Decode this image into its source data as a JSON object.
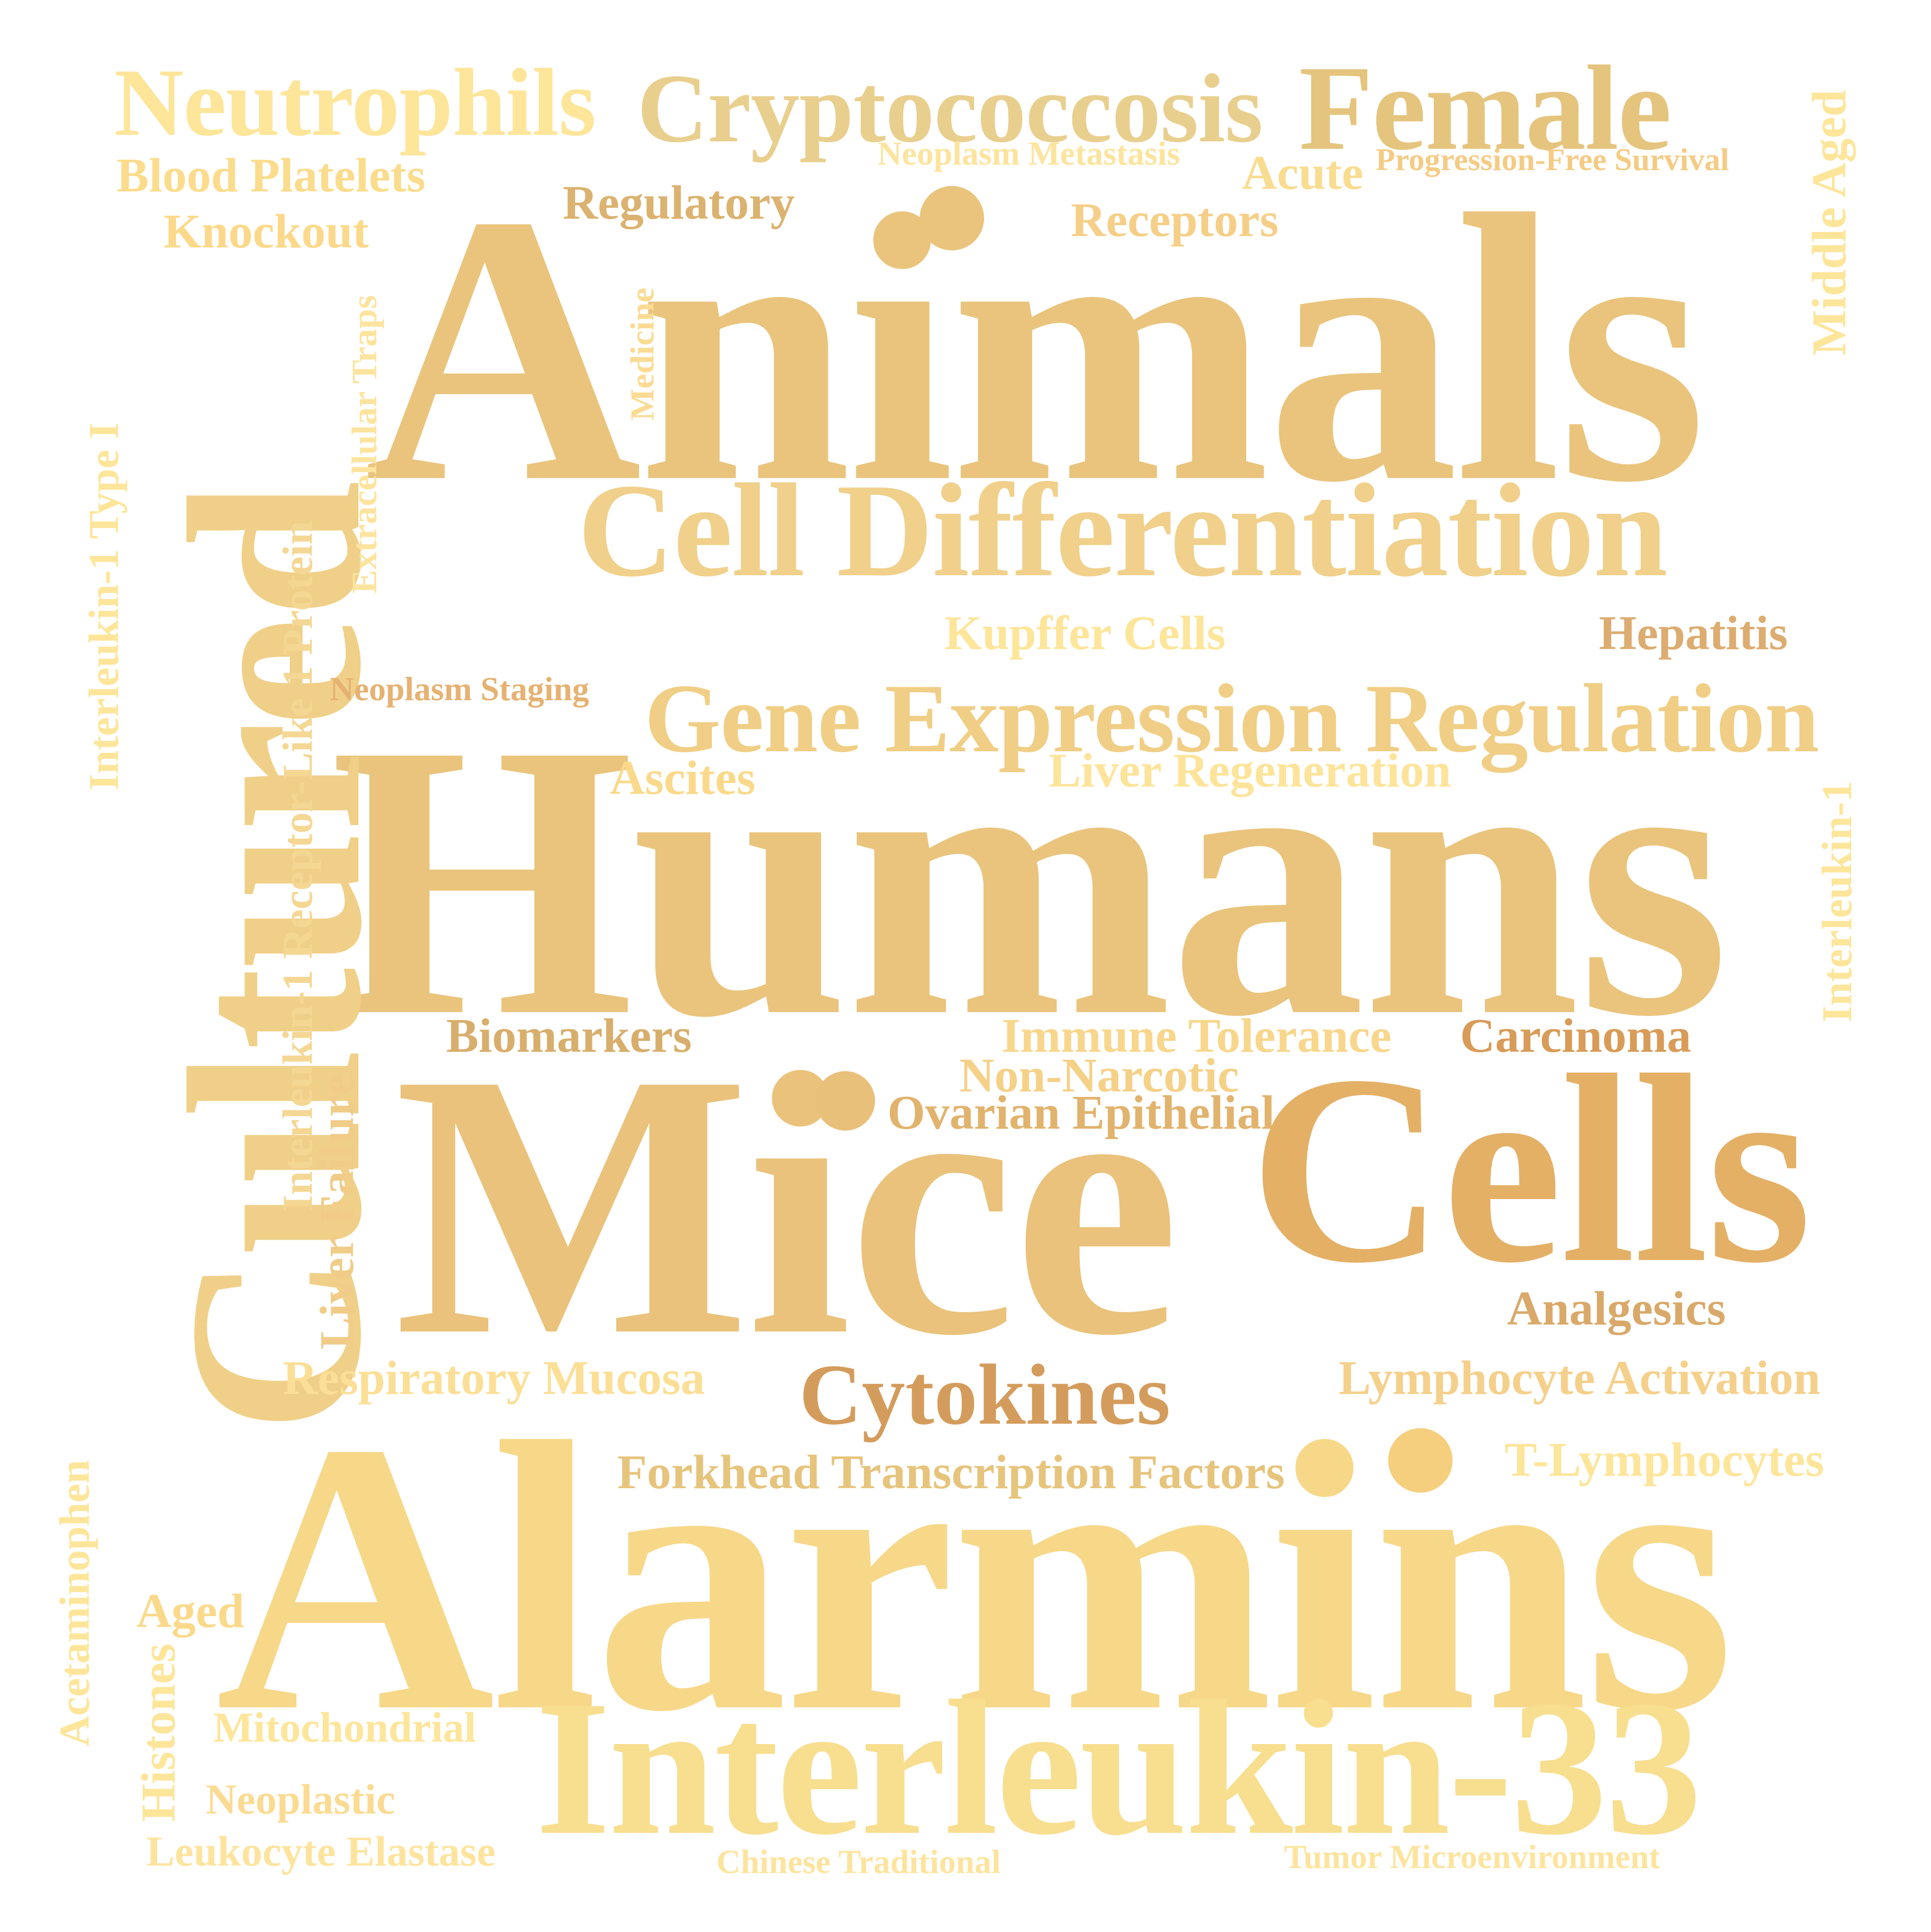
{
  "word_cloud": {
    "words": [
      {
        "text": "Animals",
        "color": "#eac47d"
      },
      {
        "text": "Humans",
        "color": "#eac47d"
      },
      {
        "text": "Mice",
        "color": "#eac27b"
      },
      {
        "text": "Alarmins",
        "color": "#f7d889"
      },
      {
        "text": "Cultured",
        "color": "#f0d088"
      },
      {
        "text": "Cells",
        "color": "#e4b066"
      },
      {
        "text": "Interleukin-33",
        "color": "#f8de8f"
      },
      {
        "text": "Cell Differentiation",
        "color": "#f0d08b"
      },
      {
        "text": "Gene Expression Regulation",
        "color": "#f0ce85"
      },
      {
        "text": "Cryptococcosis",
        "color": "#e9cf8e"
      },
      {
        "text": "Female",
        "color": "#e5c47d"
      },
      {
        "text": "Neutrophils",
        "color": "#fde59a"
      },
      {
        "text": "Cytokines",
        "color": "#d49c5c"
      },
      {
        "text": "Blood Platelets",
        "color": "#fbdc8c"
      },
      {
        "text": "Knockout",
        "color": "#fcd98a"
      },
      {
        "text": "Regulatory",
        "color": "#dbb26f"
      },
      {
        "text": "Receptors",
        "color": "#f5cf88"
      },
      {
        "text": "Acute",
        "color": "#f8dc90"
      },
      {
        "text": "Neoplasm Metastasis",
        "color": "#fde49e"
      },
      {
        "text": "Progression-Free Survival",
        "color": "#f5cb84"
      },
      {
        "text": "Middle Aged",
        "color": "#fde59a"
      },
      {
        "text": "Medicine",
        "color": "#fbdb93"
      },
      {
        "text": "Extracellular Traps",
        "color": "#fde49e"
      },
      {
        "text": "Interleukin-1 Receptor-Like 1 Protein",
        "color": "#f5d794"
      },
      {
        "text": "Interleukin-1 Type I",
        "color": "#fde59a"
      },
      {
        "text": "Kupffer Cells",
        "color": "#fde59a"
      },
      {
        "text": "Hepatitis",
        "color": "#dcac70"
      },
      {
        "text": "Neoplasm Staging",
        "color": "#e6b272"
      },
      {
        "text": "Ascites",
        "color": "#fbd98a"
      },
      {
        "text": "Liver Regeneration",
        "color": "#fde49a"
      },
      {
        "text": "Interleukin-1",
        "color": "#fde59a"
      },
      {
        "text": "Biomarkers",
        "color": "#d8ae6c"
      },
      {
        "text": "Immune Tolerance",
        "color": "#f8d68c"
      },
      {
        "text": "Carcinoma",
        "color": "#d89c58"
      },
      {
        "text": "Non-Narcotic",
        "color": "#f5d188"
      },
      {
        "text": "Ovarian Epithelial",
        "color": "#e1b36d"
      },
      {
        "text": "Liver Failure",
        "color": "#f0cc88"
      },
      {
        "text": "Analgesics",
        "color": "#d9a96a"
      },
      {
        "text": "Respiratory Mucosa",
        "color": "#fcdf96"
      },
      {
        "text": "Lymphocyte Activation",
        "color": "#f5d08b"
      },
      {
        "text": "Forkhead Transcription Factors",
        "color": "#e6c47c"
      },
      {
        "text": "T-Lymphocytes",
        "color": "#fde59a"
      },
      {
        "text": "Acetaminophen",
        "color": "#fde59a"
      },
      {
        "text": "Aged",
        "color": "#fbd98a"
      },
      {
        "text": "Histones",
        "color": "#fde59a"
      },
      {
        "text": "Mitochondrial",
        "color": "#fde59a"
      },
      {
        "text": "Neoplastic",
        "color": "#fbdb93"
      },
      {
        "text": "Leukocyte Elastase",
        "color": "#fde49e"
      },
      {
        "text": "Chinese Traditional",
        "color": "#fde49e"
      },
      {
        "text": "Tumor Microenvironment",
        "color": "#fde49e"
      }
    ],
    "dots": [
      {
        "color": "#eac47d"
      },
      {
        "color": "#f5cf7e"
      },
      {
        "color": "#e9c07a"
      }
    ]
  }
}
